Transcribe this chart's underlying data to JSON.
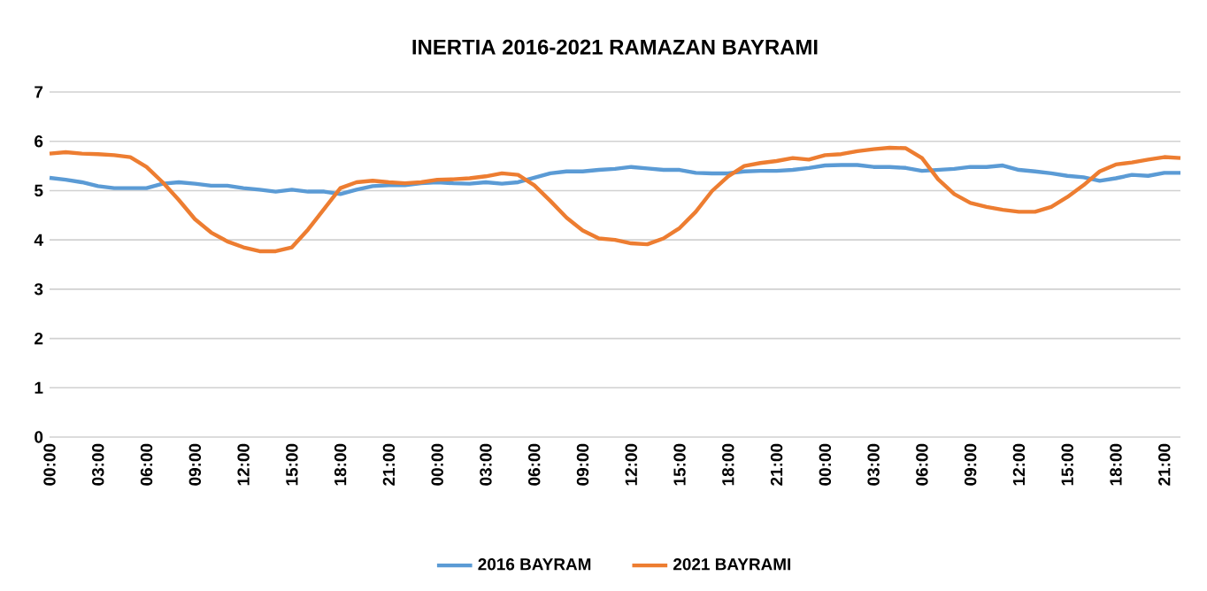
{
  "chart_data": {
    "type": "line",
    "title": "INERTIA 2016-2021 RAMAZAN BAYRAMI",
    "categories": [
      "00:00",
      null,
      null,
      "03:00",
      null,
      null,
      "06:00",
      null,
      null,
      "09:00",
      null,
      null,
      "12:00",
      null,
      null,
      "15:00",
      null,
      null,
      "18:00",
      null,
      null,
      "21:00",
      null,
      null,
      "00:00",
      null,
      null,
      "03:00",
      null,
      null,
      "06:00",
      null,
      null,
      "09:00",
      null,
      null,
      "12:00",
      null,
      null,
      "15:00",
      null,
      null,
      "18:00",
      null,
      null,
      "21:00",
      null,
      null,
      "00:00",
      null,
      null,
      "03:00",
      null,
      null,
      "06:00",
      null,
      null,
      "09:00",
      null,
      null,
      "12:00",
      null,
      null,
      "15:00",
      null,
      null,
      "18:00",
      null,
      null,
      "21:00",
      null
    ],
    "series": [
      {
        "name": "2016 BAYRAM",
        "color": "#5b9bd5",
        "values": [
          5.26,
          5.22,
          5.17,
          5.09,
          5.05,
          5.05,
          5.05,
          5.14,
          5.17,
          5.14,
          5.1,
          5.1,
          5.05,
          5.02,
          4.98,
          5.02,
          4.98,
          4.98,
          4.93,
          5.02,
          5.09,
          5.11,
          5.11,
          5.15,
          5.17,
          5.15,
          5.14,
          5.17,
          5.14,
          5.17,
          5.26,
          5.35,
          5.39,
          5.39,
          5.42,
          5.44,
          5.48,
          5.45,
          5.42,
          5.42,
          5.36,
          5.35,
          5.35,
          5.39,
          5.4,
          5.4,
          5.42,
          5.46,
          5.51,
          5.52,
          5.52,
          5.48,
          5.48,
          5.46,
          5.4,
          5.42,
          5.44,
          5.48,
          5.48,
          5.51,
          5.42,
          5.39,
          5.35,
          5.3,
          5.27,
          5.2,
          5.25,
          5.32,
          5.3,
          5.36,
          5.36
        ]
      },
      {
        "name": "2021 BAYRAMI",
        "color": "#ed7d31",
        "values": [
          5.75,
          5.78,
          5.75,
          5.74,
          5.72,
          5.68,
          5.48,
          5.17,
          4.81,
          4.42,
          4.15,
          3.97,
          3.85,
          3.77,
          3.77,
          3.85,
          4.21,
          4.63,
          5.05,
          5.17,
          5.2,
          5.17,
          5.15,
          5.17,
          5.22,
          5.23,
          5.25,
          5.29,
          5.35,
          5.32,
          5.11,
          4.79,
          4.45,
          4.19,
          4.03,
          4.0,
          3.93,
          3.91,
          4.03,
          4.24,
          4.57,
          4.99,
          5.29,
          5.5,
          5.56,
          5.6,
          5.66,
          5.63,
          5.72,
          5.74,
          5.8,
          5.84,
          5.87,
          5.86,
          5.66,
          5.23,
          4.93,
          4.75,
          4.67,
          4.61,
          4.57,
          4.57,
          4.67,
          4.87,
          5.11,
          5.39,
          5.53,
          5.57,
          5.63,
          5.68,
          5.66
        ]
      }
    ],
    "ylim": [
      0,
      7
    ],
    "yticks": [
      0,
      1,
      2,
      3,
      4,
      5,
      6,
      7
    ],
    "grid": "y",
    "legend": "bottom",
    "line_style": "solid",
    "marker": "none"
  }
}
